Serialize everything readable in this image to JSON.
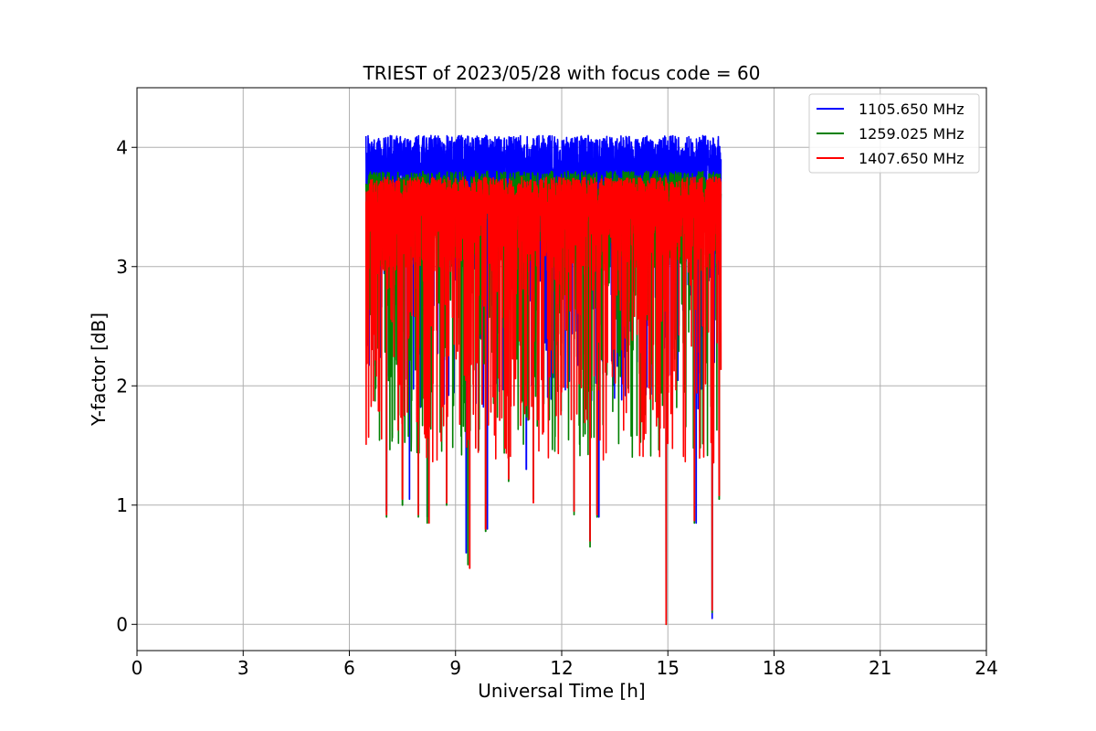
{
  "chart_data": {
    "type": "line",
    "title": "TRIEST of 2023/05/28 with focus code = 60",
    "xlabel": "Universal Time [h]",
    "ylabel": "Y-factor [dB]",
    "xlim": [
      0,
      24
    ],
    "ylim": [
      -0.22,
      4.5
    ],
    "xticks": [
      0,
      3,
      6,
      9,
      12,
      15,
      18,
      21,
      24
    ],
    "yticks": [
      0,
      1,
      2,
      3,
      4
    ],
    "grid": true,
    "legend_position": "top-right",
    "x_range_of_data": [
      6.47,
      16.5
    ],
    "series": [
      {
        "name": "1105.650 MHz",
        "color": "#0000ff",
        "typical_max": 4.1,
        "typical_min": 3.4,
        "dips": [
          [
            7.05,
            0.95
          ],
          [
            7.7,
            1.05
          ],
          [
            8.2,
            0.9
          ],
          [
            9.3,
            0.6
          ],
          [
            9.9,
            0.8
          ],
          [
            11.0,
            1.3
          ],
          [
            12.35,
            0.95
          ],
          [
            12.8,
            0.7
          ],
          [
            13.05,
            0.9
          ],
          [
            14.95,
            0.03
          ],
          [
            15.8,
            0.85
          ],
          [
            16.25,
            0.05
          ],
          [
            16.45,
            1.1
          ]
        ]
      },
      {
        "name": "1259.025 MHz",
        "color": "#008000",
        "typical_max": 3.8,
        "typical_min": 3.0,
        "dips": [
          [
            7.05,
            0.9
          ],
          [
            7.5,
            1.0
          ],
          [
            7.95,
            0.9
          ],
          [
            8.2,
            0.85
          ],
          [
            8.75,
            1.0
          ],
          [
            9.35,
            0.5
          ],
          [
            9.85,
            0.78
          ],
          [
            10.5,
            1.2
          ],
          [
            11.2,
            1.05
          ],
          [
            12.35,
            0.92
          ],
          [
            12.8,
            0.65
          ],
          [
            13.0,
            0.9
          ],
          [
            14.95,
            0.0
          ],
          [
            15.75,
            0.85
          ],
          [
            16.25,
            0.1
          ],
          [
            16.45,
            1.05
          ]
        ]
      },
      {
        "name": "1407.650 MHz",
        "color": "#ff0000",
        "typical_max": 3.75,
        "typical_min": 2.95,
        "dips": [
          [
            7.05,
            0.92
          ],
          [
            7.5,
            1.05
          ],
          [
            7.95,
            0.92
          ],
          [
            8.25,
            0.85
          ],
          [
            8.75,
            1.02
          ],
          [
            9.4,
            0.47
          ],
          [
            9.85,
            0.8
          ],
          [
            10.5,
            1.22
          ],
          [
            11.2,
            1.02
          ],
          [
            12.35,
            0.95
          ],
          [
            12.8,
            0.7
          ],
          [
            13.0,
            0.92
          ],
          [
            14.95,
            0.0
          ],
          [
            15.75,
            0.87
          ],
          [
            16.25,
            0.12
          ],
          [
            16.45,
            1.08
          ]
        ]
      }
    ]
  }
}
